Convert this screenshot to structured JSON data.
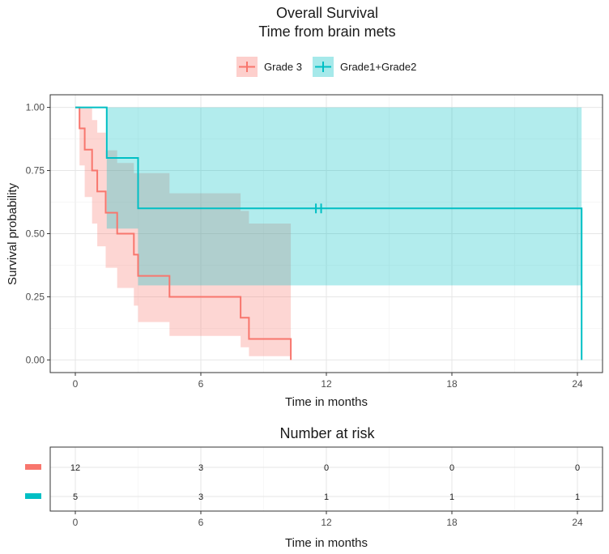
{
  "chart_data": [
    {
      "type": "line",
      "title": "Overall Survival",
      "subtitle": "Time from brain mets",
      "xlabel": "Time in months",
      "ylabel": "Survival probability",
      "xlim": [
        -1.2,
        25.2
      ],
      "ylim": [
        -0.05,
        1.05
      ],
      "x_ticks": [
        0,
        6,
        12,
        18,
        24
      ],
      "y_ticks": [
        0,
        0.25,
        0.5,
        0.75,
        1.0
      ],
      "y_tick_labels": [
        "0.00",
        "0.25",
        "0.50",
        "0.75",
        "1.00"
      ],
      "grid": true,
      "legend_position": "top",
      "series": [
        {
          "name": "Grade 3",
          "color": "#F8766D",
          "fill_color": "#F8766D",
          "steps": [
            [
              0.0,
              1.0
            ],
            [
              0.2,
              0.917
            ],
            [
              0.45,
              0.833
            ],
            [
              0.8,
              0.75
            ],
            [
              1.05,
              0.667
            ],
            [
              1.45,
              0.583
            ],
            [
              2.0,
              0.5
            ],
            [
              2.8,
              0.417
            ],
            [
              3.0,
              0.333
            ],
            [
              4.5,
              0.25
            ],
            [
              7.9,
              0.167
            ],
            [
              8.3,
              0.083
            ],
            [
              10.3,
              0.0
            ]
          ],
          "ci_steps": [
            [
              0.0,
              1.0,
              1.0
            ],
            [
              0.2,
              1.0,
              0.77
            ],
            [
              0.45,
              1.0,
              0.645
            ],
            [
              0.8,
              0.95,
              0.54
            ],
            [
              1.05,
              0.9,
              0.45
            ],
            [
              1.45,
              0.83,
              0.365
            ],
            [
              2.0,
              0.78,
              0.285
            ],
            [
              2.8,
              0.74,
              0.215
            ],
            [
              3.0,
              0.74,
              0.15
            ],
            [
              4.5,
              0.66,
              0.095
            ],
            [
              7.9,
              0.59,
              0.05
            ],
            [
              8.3,
              0.54,
              0.015
            ],
            [
              10.3,
              0.54,
              0.015
            ]
          ],
          "censored": []
        },
        {
          "name": "Grade1+Grade2",
          "color": "#00BFC4",
          "fill_color": "#00BFC4",
          "steps": [
            [
              0.0,
              1.0
            ],
            [
              1.5,
              0.8
            ],
            [
              3.0,
              0.6
            ],
            [
              24.2,
              0.0
            ]
          ],
          "ci_steps": [
            [
              0.0,
              1.0,
              1.0
            ],
            [
              1.5,
              1.0,
              0.52
            ],
            [
              3.0,
              1.0,
              0.295
            ],
            [
              24.2,
              1.0,
              0.295
            ]
          ],
          "censored": [
            [
              11.5,
              0.6
            ],
            [
              11.75,
              0.6
            ]
          ]
        }
      ]
    },
    {
      "type": "table",
      "title": "Number at risk",
      "xlabel": "Time in months",
      "x_ticks": [
        0,
        6,
        12,
        18,
        24
      ],
      "rows": [
        {
          "group": "Grade 3",
          "color": "#F8766D",
          "values": [
            12,
            3,
            0,
            0,
            0
          ]
        },
        {
          "group": "Grade1+Grade2",
          "color": "#00BFC4",
          "values": [
            5,
            3,
            1,
            1,
            1
          ]
        }
      ]
    }
  ]
}
